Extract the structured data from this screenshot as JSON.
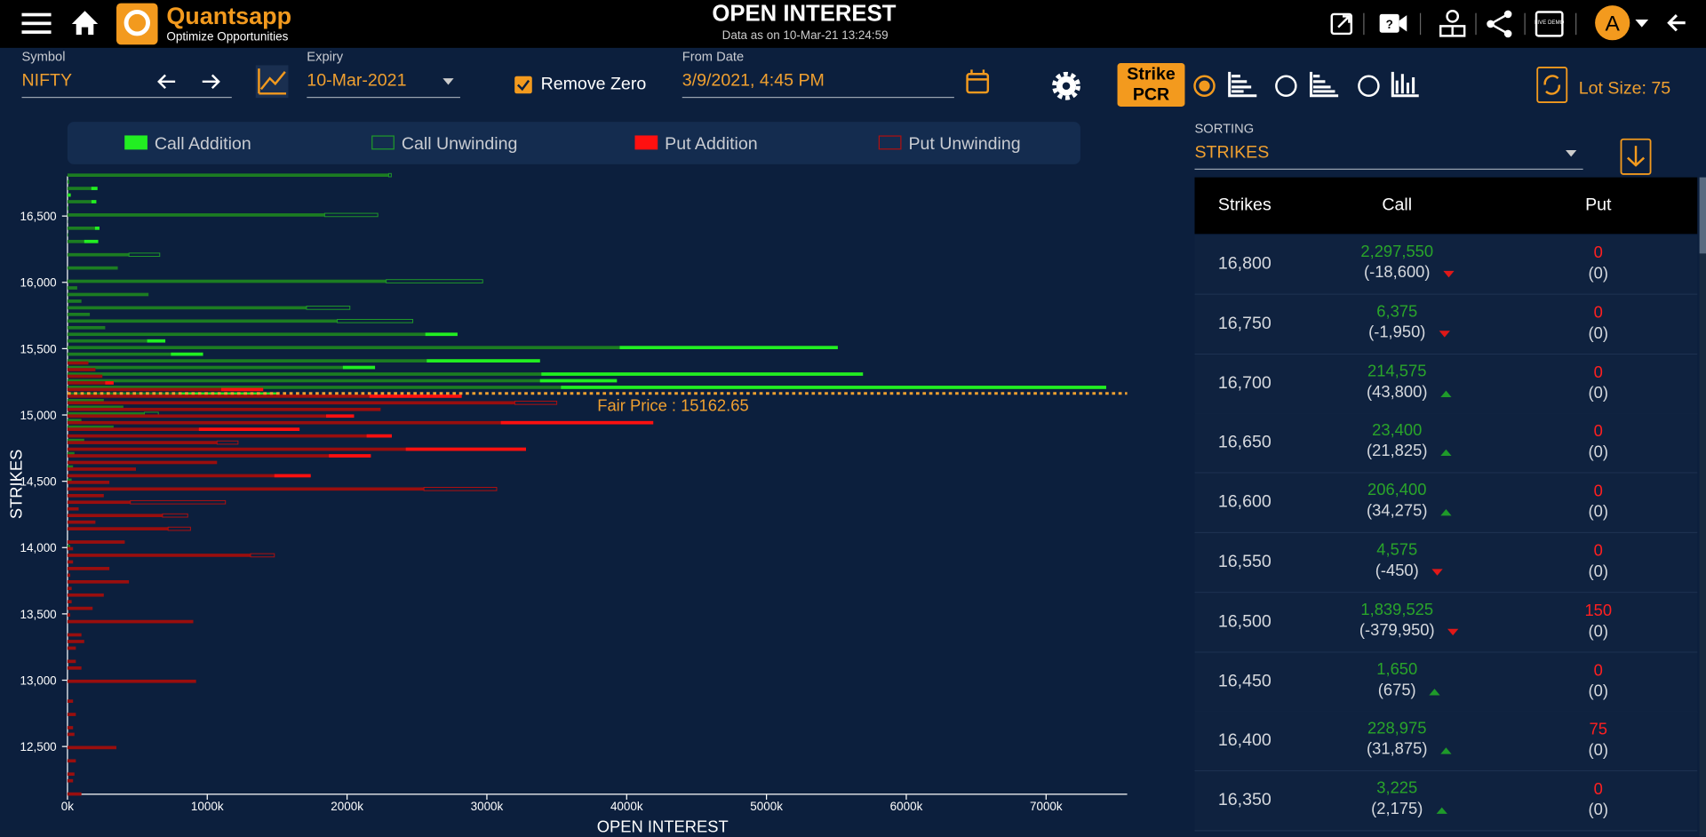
{
  "header": {
    "brand": "Quantsapp",
    "tagline": "Optimize Opportunities",
    "title": "OPEN INTEREST",
    "subtitle": "Data as on 10-Mar-21 13:24:59",
    "live_demo": "LIVE DEMO",
    "avatar": "A"
  },
  "controls": {
    "symbol_label": "Symbol",
    "symbol": "NIFTY",
    "expiry_label": "Expiry",
    "expiry": "10-Mar-2021",
    "remove_zero": "Remove Zero",
    "from_date_label": "From Date",
    "from_date": "3/9/2021, 4:45 PM",
    "strike_pcr": "Strike PCR",
    "lot_size": "Lot Size: 75",
    "sorting_label": "SORTING",
    "sorting": "STRIKES"
  },
  "chart_data": {
    "type": "bar",
    "orientation": "horizontal",
    "x_label": "OPEN INTEREST",
    "y_label": "STRIKES",
    "legend": [
      {
        "label": "Call Addition",
        "color": "#22ee22",
        "style": "fill"
      },
      {
        "label": "Call Unwinding",
        "color": "#1f9a2a",
        "style": "outline"
      },
      {
        "label": "Put Addition",
        "color": "#ff1010",
        "style": "fill"
      },
      {
        "label": "Put Unwinding",
        "color": "#b01010",
        "style": "outline"
      }
    ],
    "xlim": [
      0,
      7580
    ],
    "xticks": [
      {
        "value": 0,
        "label": "0k"
      },
      {
        "value": 1000,
        "label": "1000k"
      },
      {
        "value": 2000,
        "label": "2000k"
      },
      {
        "value": 3000,
        "label": "3000k"
      },
      {
        "value": 4000,
        "label": "4000k"
      },
      {
        "value": 5000,
        "label": "5000k"
      },
      {
        "value": 6000,
        "label": "6000k"
      },
      {
        "value": 7000,
        "label": "7000k"
      }
    ],
    "ylim": [
      12140,
      16800
    ],
    "yticks": [
      {
        "value": 12500,
        "label": "12,500"
      },
      {
        "value": 13000,
        "label": "13,000"
      },
      {
        "value": 13500,
        "label": "13,500"
      },
      {
        "value": 14000,
        "label": "14,000"
      },
      {
        "value": 14500,
        "label": "14,500"
      },
      {
        "value": 15000,
        "label": "15,000"
      },
      {
        "value": 15500,
        "label": "15,500"
      },
      {
        "value": 16000,
        "label": "16,000"
      },
      {
        "value": 16500,
        "label": "16,500"
      }
    ],
    "fair_price": 15162.65,
    "fair_price_label": "Fair Price : 15162.65",
    "fair_price_color": "#f0a030",
    "call": {
      "color": "#1c7d22",
      "add_color": "#22ee22",
      "unwind_color": "#1f9a2a",
      "strikes": [
        16800,
        16750,
        16700,
        16650,
        16600,
        16550,
        16500,
        16450,
        16400,
        16350,
        16300,
        16200,
        16100,
        16000,
        15950,
        15900,
        15850,
        15800,
        15750,
        15700,
        15650,
        15600,
        15550,
        15500,
        15450,
        15400,
        15350,
        15300,
        15250,
        15200,
        15150,
        15100,
        15050,
        15000,
        14950,
        14900,
        14800,
        14700,
        14600,
        14500,
        14000
      ],
      "values": [
        2297.55,
        6.375,
        214.575,
        23.4,
        206.4,
        4.575,
        1839.525,
        1.65,
        228.975,
        3.225,
        220,
        440,
        360,
        2280,
        70,
        580,
        100,
        1710,
        160,
        1930,
        270,
        2790,
        700,
        5510,
        970,
        3380,
        2200,
        5690,
        3930,
        7430,
        1500,
        260,
        400,
        550,
        100,
        330,
        120,
        50,
        40,
        30,
        20
      ],
      "changes": [
        -18.6,
        -1.95,
        43.8,
        21.825,
        34.275,
        -0.45,
        -379.95,
        0.675,
        31.875,
        2.175,
        100,
        -220,
        0,
        -690,
        0,
        0,
        0,
        -310,
        0,
        -540,
        0,
        230,
        130,
        1560,
        230,
        810,
        230,
        2300,
        550,
        3900,
        700,
        0,
        0,
        -100,
        0,
        0,
        0,
        0,
        0,
        0,
        0
      ]
    },
    "put": {
      "color": "#9a0e0e",
      "add_color": "#ff1010",
      "unwind_color": "#b01010",
      "strikes": [
        16500,
        16400,
        15400,
        15350,
        15300,
        15250,
        15200,
        15150,
        15100,
        15050,
        15000,
        14950,
        14900,
        14850,
        14800,
        14750,
        14700,
        14650,
        14600,
        14550,
        14500,
        14450,
        14400,
        14350,
        14300,
        14250,
        14200,
        14150,
        14050,
        14000,
        13950,
        13900,
        13850,
        13800,
        13750,
        13700,
        13650,
        13600,
        13550,
        13500,
        13450,
        13350,
        13300,
        13250,
        13150,
        13100,
        13000,
        12850,
        12750,
        12650,
        12600,
        12500,
        12400,
        12300,
        12250,
        12150
      ],
      "values": [
        0.15,
        0.075,
        150,
        200,
        250,
        330,
        1400,
        2820,
        3200,
        2240,
        2050,
        4190,
        1660,
        2320,
        1070,
        3280,
        2170,
        1070,
        490,
        1740,
        300,
        2550,
        260,
        450,
        80,
        680,
        200,
        720,
        410,
        40,
        1310,
        40,
        300,
        20,
        440,
        30,
        260,
        30,
        180,
        20,
        900,
        100,
        120,
        60,
        60,
        100,
        920,
        40,
        60,
        40,
        50,
        350,
        60,
        50,
        40,
        100
      ],
      "changes": [
        0,
        0,
        0,
        0,
        0,
        60,
        300,
        660,
        -300,
        0,
        200,
        1090,
        720,
        180,
        -150,
        860,
        300,
        0,
        0,
        260,
        0,
        -520,
        0,
        -680,
        0,
        -180,
        0,
        -160,
        0,
        0,
        -170,
        0,
        0,
        0,
        0,
        0,
        0,
        0,
        0,
        0,
        0,
        0,
        0,
        0,
        0,
        0,
        0,
        0,
        0,
        0,
        0,
        0,
        0,
        0,
        0,
        0
      ]
    }
  },
  "table": {
    "columns": [
      "Strikes",
      "Call",
      "Put"
    ],
    "rows": [
      [
        "16,800",
        "2,297,550",
        "(-18,600)",
        "0",
        "(0)"
      ],
      [
        "16,750",
        "6,375",
        "(-1,950)",
        "0",
        "(0)"
      ],
      [
        "16,700",
        "214,575",
        "(43,800)",
        "0",
        "(0)"
      ],
      [
        "16,650",
        "23,400",
        "(21,825)",
        "0",
        "(0)"
      ],
      [
        "16,600",
        "206,400",
        "(34,275)",
        "0",
        "(0)"
      ],
      [
        "16,550",
        "4,575",
        "(-450)",
        "0",
        "(0)"
      ],
      [
        "16,500",
        "1,839,525",
        "(-379,950)",
        "150",
        "(0)"
      ],
      [
        "16,450",
        "1,650",
        "(675)",
        "0",
        "(0)"
      ],
      [
        "16,400",
        "228,975",
        "(31,875)",
        "75",
        "(0)"
      ],
      [
        "16,350",
        "3,225",
        "(2,175)",
        "0",
        "(0)"
      ]
    ]
  }
}
